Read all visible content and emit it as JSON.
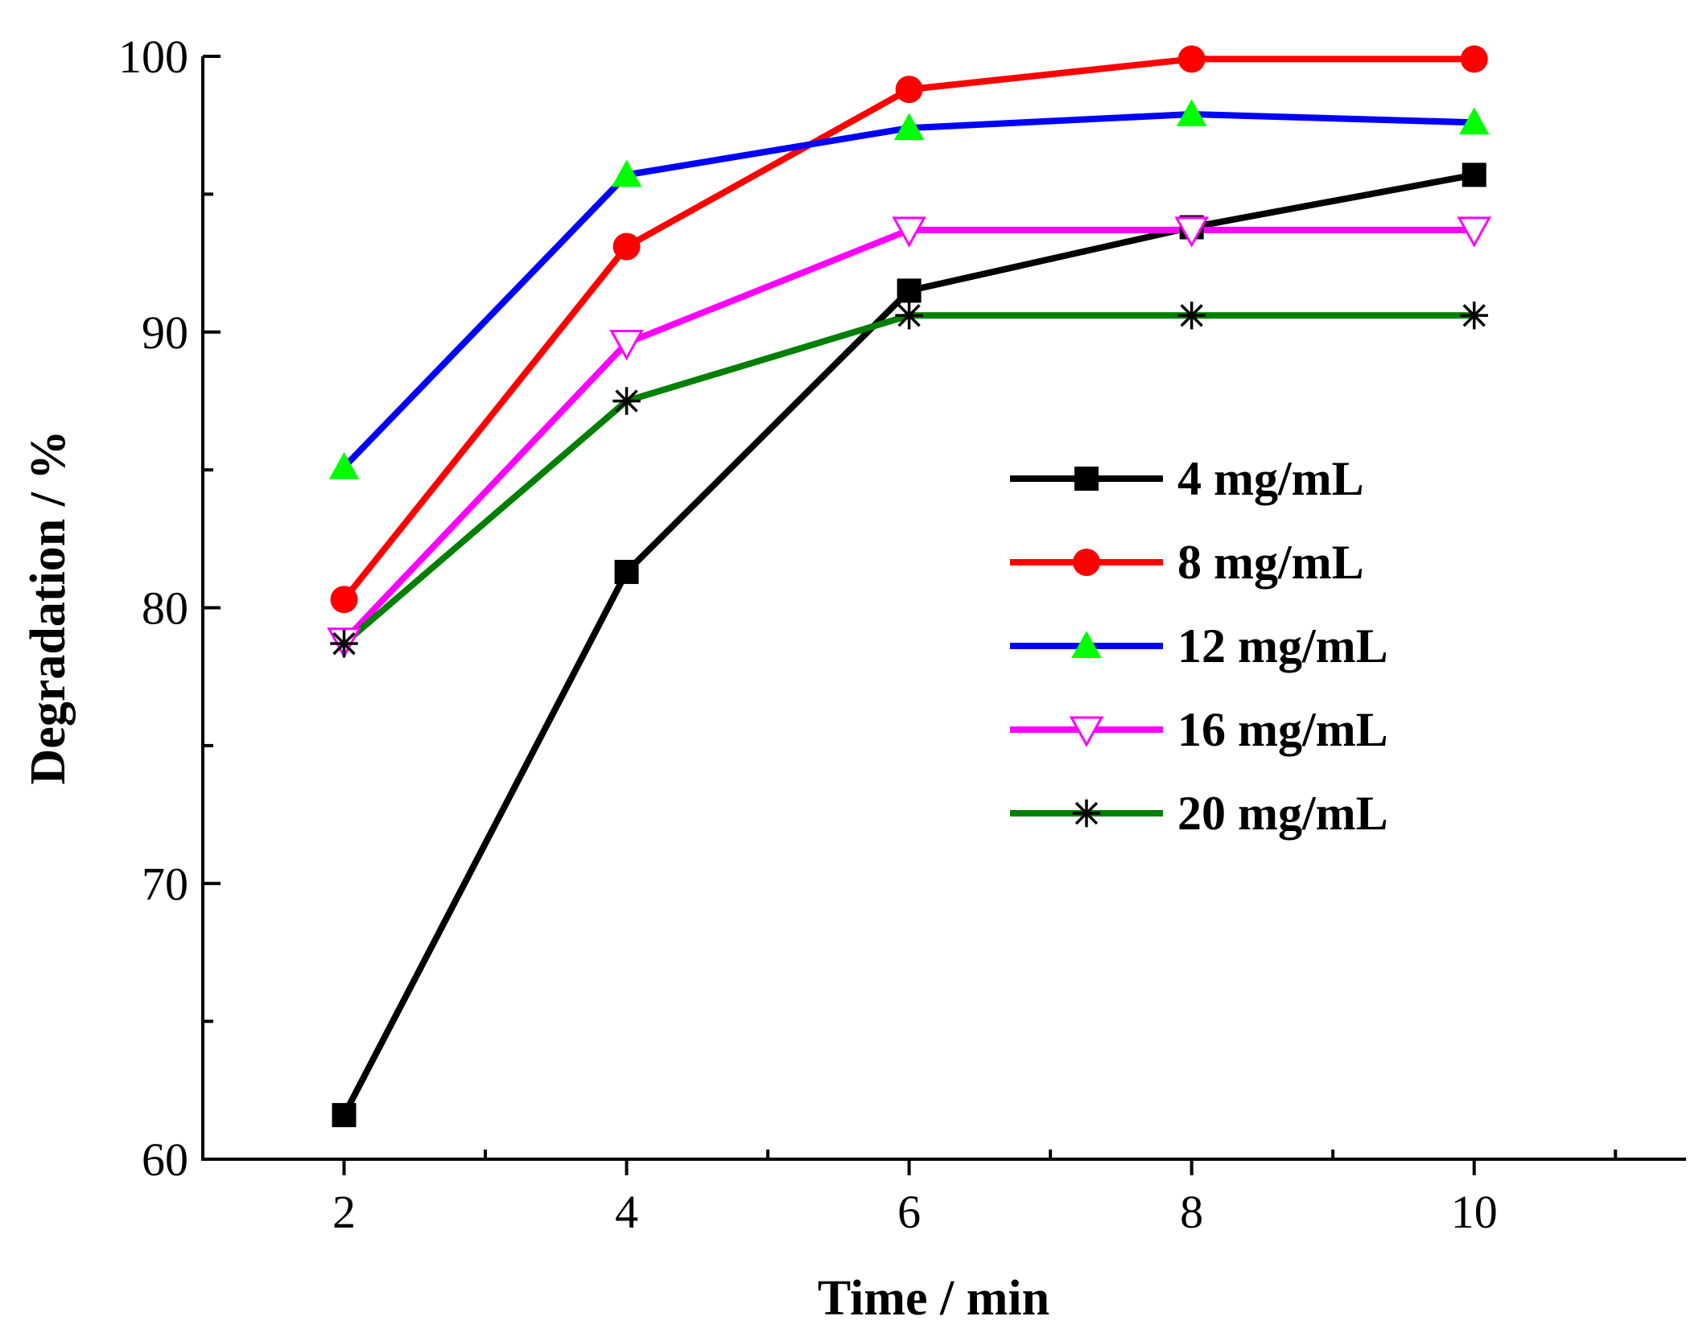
{
  "chart_data": {
    "type": "line",
    "xlabel": "Time / min",
    "ylabel": "Degradation / %",
    "xlim": [
      1,
      11.5
    ],
    "ylim": [
      60,
      100
    ],
    "x": [
      2,
      4,
      6,
      8,
      10
    ],
    "x_ticks": [
      2,
      4,
      6,
      8,
      10
    ],
    "x_minor_ticks": [
      3,
      5,
      7,
      9,
      11
    ],
    "y_ticks": [
      60,
      70,
      80,
      90,
      100
    ],
    "y_minor_ticks": [
      65,
      75,
      85,
      95
    ],
    "grid": false,
    "legend_position": "center-right",
    "series": [
      {
        "name": "4 mg/mL",
        "values": [
          61.6,
          81.3,
          91.5,
          93.8,
          95.7
        ],
        "color": "#000000",
        "marker": "square"
      },
      {
        "name": "8 mg/mL",
        "values": [
          80.3,
          93.1,
          98.8,
          99.9,
          99.9
        ],
        "color": "#ff0000",
        "marker": "circle"
      },
      {
        "name": "12 mg/mL",
        "values": [
          85.1,
          95.7,
          97.4,
          97.9,
          97.6
        ],
        "color": "#0000ff",
        "marker": "triangle-up",
        "marker_color": "#00ff00"
      },
      {
        "name": "16 mg/mL",
        "values": [
          78.8,
          89.6,
          93.7,
          93.7,
          93.7
        ],
        "color": "#ff00ff",
        "marker": "triangle-down-open"
      },
      {
        "name": "20 mg/mL",
        "values": [
          78.7,
          87.5,
          90.6,
          90.6,
          90.6
        ],
        "color": "#008000",
        "marker": "asterisk"
      }
    ]
  }
}
